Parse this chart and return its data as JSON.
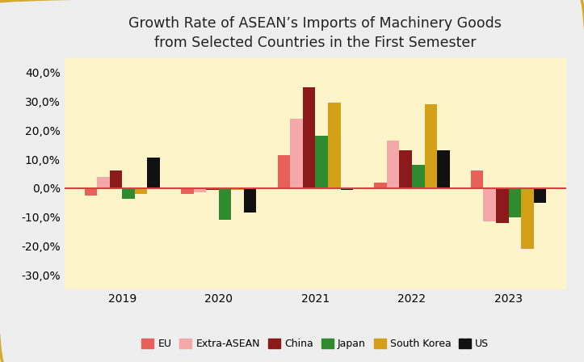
{
  "title": "Growth Rate of ASEAN’s Imports of Machinery Goods\nfrom Selected Countries in the First Semester",
  "years": [
    2019,
    2020,
    2021,
    2022,
    2023
  ],
  "series": {
    "EU": [
      -2.5,
      -2.0,
      11.5,
      2.0,
      6.0
    ],
    "Extra-ASEAN": [
      4.0,
      -1.5,
      24.0,
      16.5,
      -11.5
    ],
    "China": [
      6.0,
      -0.5,
      35.0,
      13.0,
      -12.0
    ],
    "Japan": [
      -3.5,
      -11.0,
      18.0,
      8.0,
      -10.0
    ],
    "South Korea": [
      -2.0,
      -0.5,
      29.5,
      29.0,
      -21.0
    ],
    "US": [
      10.5,
      -8.5,
      -0.5,
      13.0,
      -5.0
    ]
  },
  "colors": {
    "EU": "#e8605a",
    "Extra-ASEAN": "#f4a8a8",
    "China": "#8b1a1a",
    "Japan": "#2e8b2e",
    "South Korea": "#d4a017",
    "US": "#111111"
  },
  "ylim": [
    -35,
    45
  ],
  "yticks": [
    -30,
    -20,
    -10,
    0,
    10,
    20,
    30,
    40
  ],
  "plot_bg": "#fdf5c9",
  "fig_bg": "#eeeeee",
  "zero_line_color": "#d94040",
  "bar_width": 0.13,
  "border_color": "#d4aa30"
}
